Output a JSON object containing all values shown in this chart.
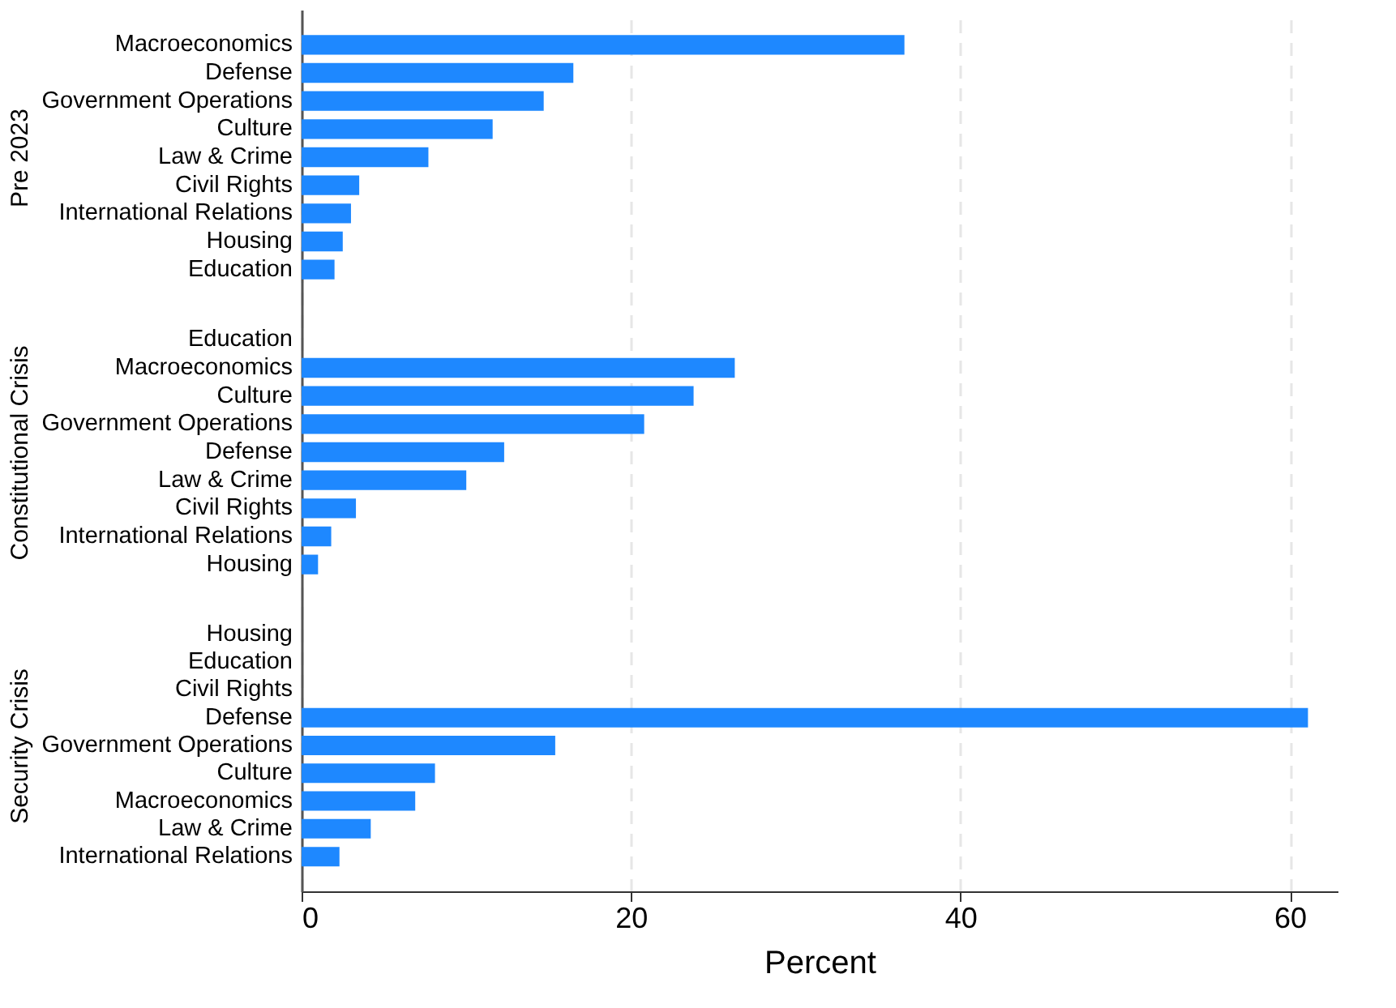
{
  "chart_data": [
    {
      "type": "bar",
      "orientation": "horizontal",
      "ylabel": "Pre 2023",
      "categories": [
        "Macroeconomics",
        "Defense",
        "Government Operations",
        "Culture",
        "Law & Crime",
        "Civil Rights",
        "International Relations",
        "Housing",
        "Education"
      ],
      "values": [
        36.6,
        16.5,
        14.7,
        11.6,
        7.7,
        3.5,
        3.0,
        2.5,
        2.0
      ],
      "color": "#1e88ff",
      "xticks": [
        0,
        20,
        40,
        60
      ],
      "grid": "x",
      "tick_labels": "y"
    },
    {
      "type": "bar",
      "orientation": "horizontal",
      "ylabel": "Constitutional Crisis",
      "categories": [
        "Education",
        "Macroeconomics",
        "Culture",
        "Government Operations",
        "Defense",
        "Law & Crime",
        "Civil Rights",
        "International Relations",
        "Housing"
      ],
      "values": [
        0,
        26.3,
        23.8,
        20.8,
        12.3,
        10.0,
        3.3,
        1.8,
        1.0
      ],
      "color": "#1e88ff",
      "xticks": [
        0,
        20,
        40,
        60
      ],
      "grid": "x",
      "tick_labels": "y"
    },
    {
      "type": "bar",
      "orientation": "horizontal",
      "ylabel": "Security Crisis",
      "xlabel": "Percent",
      "categories": [
        "Housing",
        "Education",
        "Civil Rights",
        "Defense",
        "Government Operations",
        "Culture",
        "Macroeconomics",
        "Law & Crime",
        "International Relations"
      ],
      "values": [
        0,
        0,
        0,
        61.1,
        15.4,
        8.1,
        6.9,
        4.2,
        2.3
      ],
      "color": "#1e88ff",
      "xlim": [
        0,
        62.9
      ],
      "xticks": [
        0,
        20,
        40,
        60
      ],
      "grid": "x"
    }
  ]
}
